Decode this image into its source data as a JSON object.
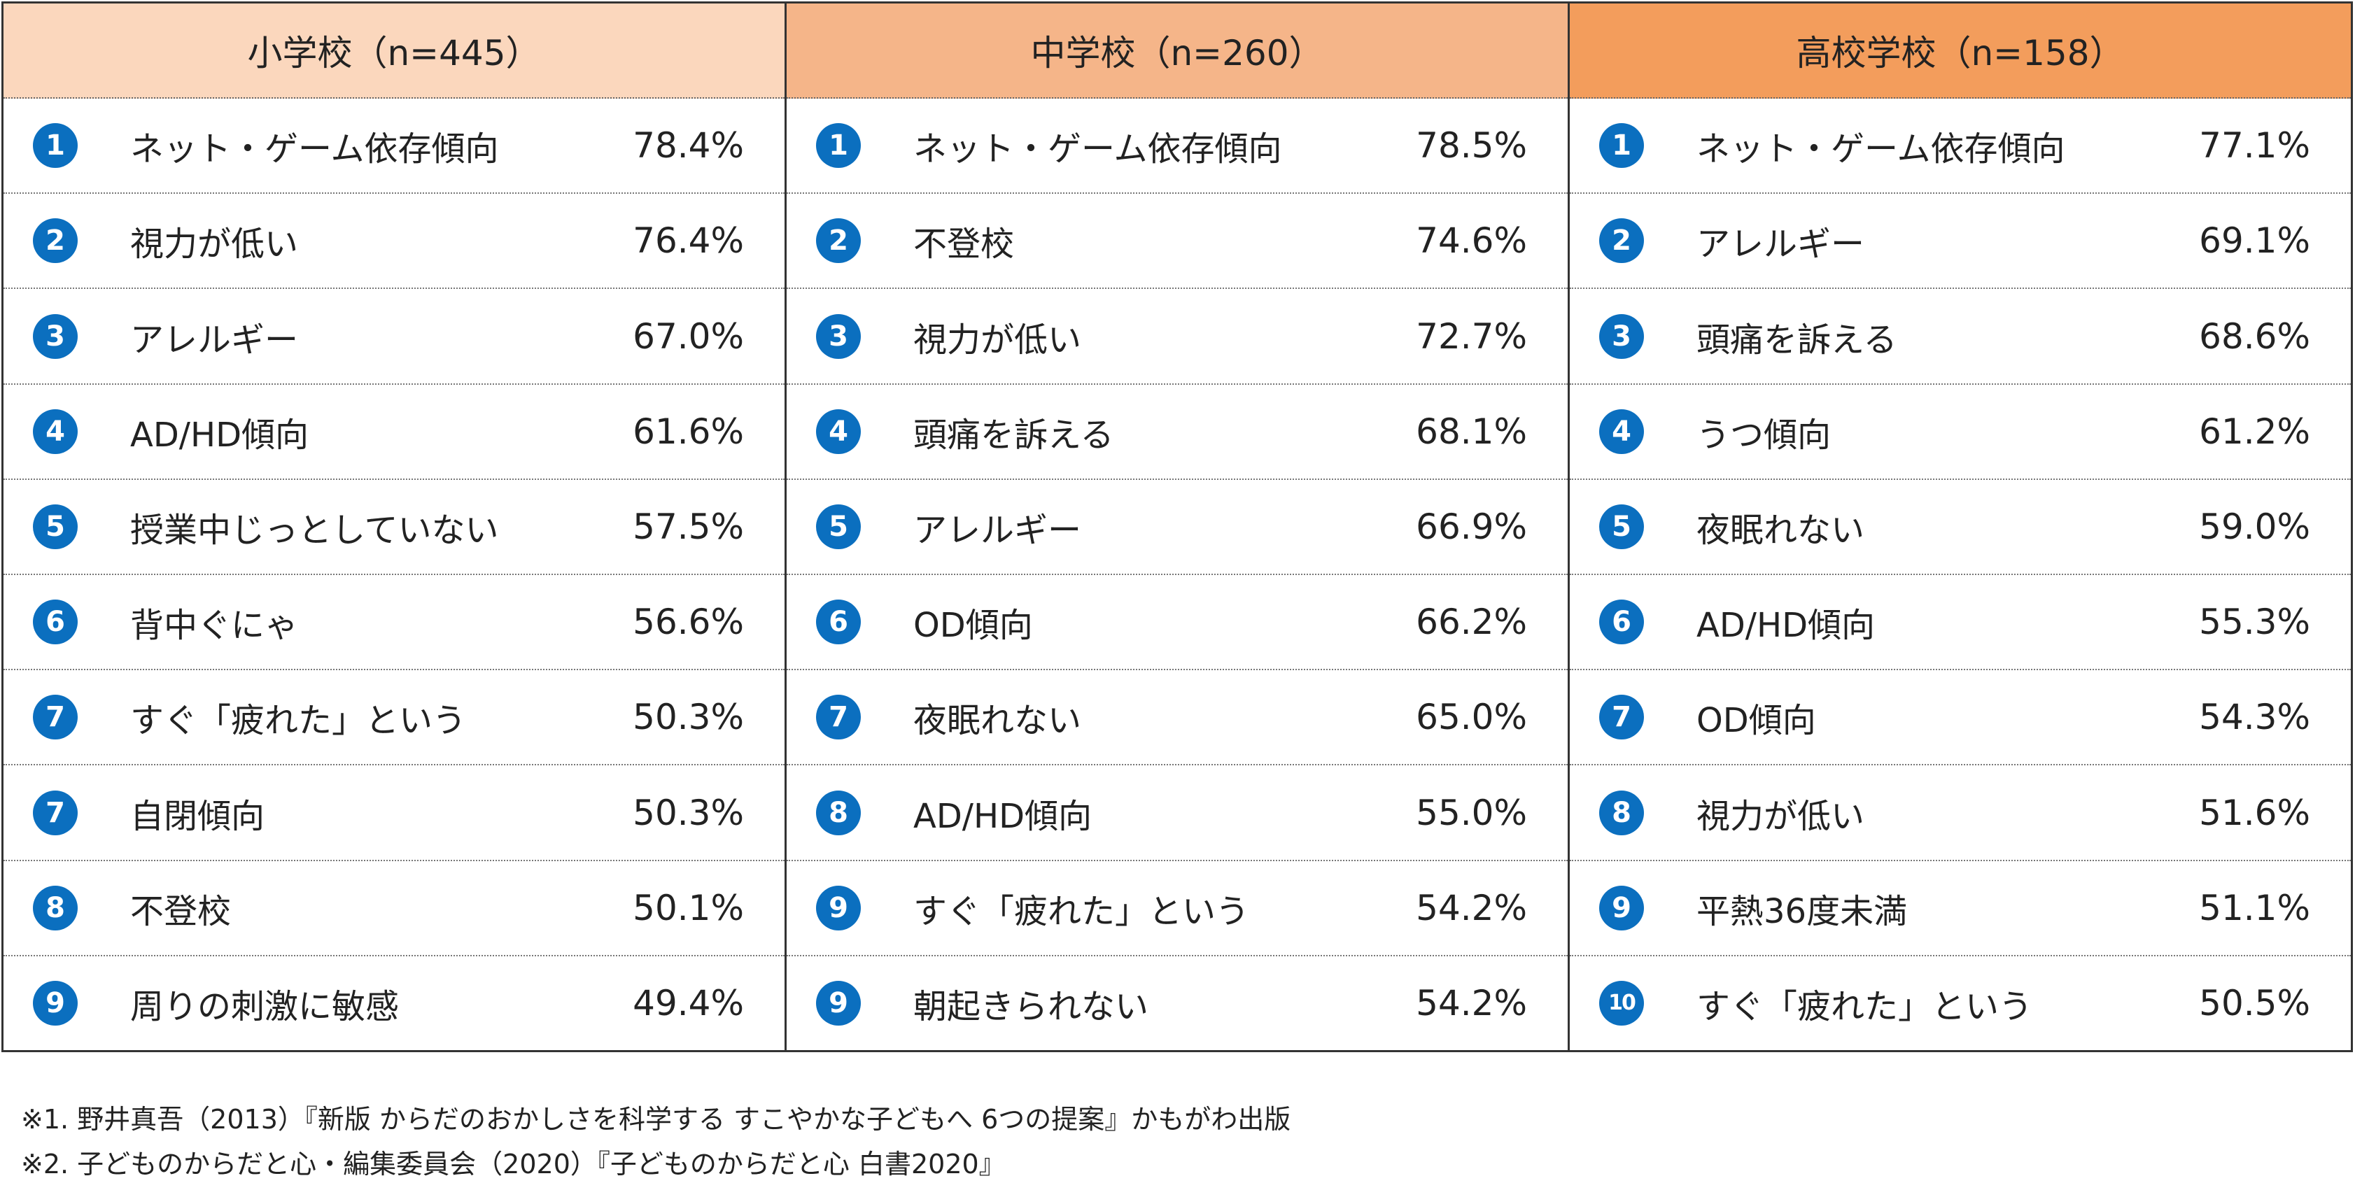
{
  "colors": {
    "badge": "#0B6FBF",
    "elementary_header": "#FBD7BD",
    "junior_header": "#F5B589",
    "high_header": "#F39D5C"
  },
  "columns": [
    {
      "title": "小学校（n=445）",
      "rows": [
        {
          "rank": "1",
          "label": "ネット・ゲーム依存傾向",
          "value": "78.4%"
        },
        {
          "rank": "2",
          "label": "視力が低い",
          "value": "76.4%"
        },
        {
          "rank": "3",
          "label": "アレルギー",
          "value": "67.0%"
        },
        {
          "rank": "4",
          "label": "AD/HD傾向",
          "value": "61.6%"
        },
        {
          "rank": "5",
          "label": "授業中じっとしていない",
          "value": "57.5%"
        },
        {
          "rank": "6",
          "label": "背中ぐにゃ",
          "value": "56.6%"
        },
        {
          "rank": "7",
          "label": "すぐ「疲れた」という",
          "value": "50.3%"
        },
        {
          "rank": "7",
          "label": "自閉傾向",
          "value": "50.3%"
        },
        {
          "rank": "8",
          "label": "不登校",
          "value": "50.1%"
        },
        {
          "rank": "9",
          "label": "周りの刺激に敏感",
          "value": "49.4%"
        }
      ]
    },
    {
      "title": "中学校（n=260）",
      "rows": [
        {
          "rank": "1",
          "label": "ネット・ゲーム依存傾向",
          "value": "78.5%"
        },
        {
          "rank": "2",
          "label": "不登校",
          "value": "74.6%"
        },
        {
          "rank": "3",
          "label": "視力が低い",
          "value": "72.7%"
        },
        {
          "rank": "4",
          "label": "頭痛を訴える",
          "value": "68.1%"
        },
        {
          "rank": "5",
          "label": "アレルギー",
          "value": "66.9%"
        },
        {
          "rank": "6",
          "label": "OD傾向",
          "value": "66.2%"
        },
        {
          "rank": "7",
          "label": "夜眠れない",
          "value": "65.0%"
        },
        {
          "rank": "8",
          "label": "AD/HD傾向",
          "value": "55.0%"
        },
        {
          "rank": "9",
          "label": "すぐ「疲れた」という",
          "value": "54.2%"
        },
        {
          "rank": "9",
          "label": "朝起きられない",
          "value": "54.2%"
        }
      ]
    },
    {
      "title": "高校学校（n=158）",
      "rows": [
        {
          "rank": "1",
          "label": "ネット・ゲーム依存傾向",
          "value": "77.1%"
        },
        {
          "rank": "2",
          "label": "アレルギー",
          "value": "69.1%"
        },
        {
          "rank": "3",
          "label": "頭痛を訴える",
          "value": "68.6%"
        },
        {
          "rank": "4",
          "label": "うつ傾向",
          "value": "61.2%"
        },
        {
          "rank": "5",
          "label": "夜眠れない",
          "value": "59.0%"
        },
        {
          "rank": "6",
          "label": "AD/HD傾向",
          "value": "55.3%"
        },
        {
          "rank": "7",
          "label": "OD傾向",
          "value": "54.3%"
        },
        {
          "rank": "8",
          "label": "視力が低い",
          "value": "51.6%"
        },
        {
          "rank": "9",
          "label": "平熱36度未満",
          "value": "51.1%"
        },
        {
          "rank": "10",
          "label": "すぐ「疲れた」という",
          "value": "50.5%"
        }
      ]
    }
  ],
  "notes": [
    "※1. 野井真吾（2013）『新版 からだのおかしさを科学する すこやかな子どもへ 6つの提案』かもがわ出版",
    "※2. 子どものからだと心・編集委員会（2020）『子どものからだと心 白書2020』"
  ]
}
